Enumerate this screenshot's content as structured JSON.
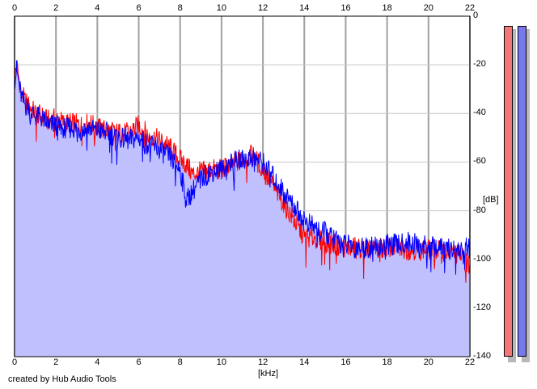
{
  "chart_data": {
    "type": "area",
    "title": "",
    "xlabel": "[kHz]",
    "ylabel": "[dB]",
    "xlim": [
      0,
      22
    ],
    "ylim": [
      -140,
      0
    ],
    "x_ticks": [
      "0",
      "2",
      "4",
      "6",
      "8",
      "10",
      "12",
      "14",
      "16",
      "18",
      "20",
      "22"
    ],
    "y_ticks": [
      "0",
      "-20",
      "-40",
      "-60",
      "-80",
      "-100",
      "-120",
      "-140"
    ],
    "grid": true,
    "x_scale": "linear",
    "series": [
      {
        "color": "#ff0000",
        "x": [
          0,
          0.1,
          0.2,
          0.3,
          0.4,
          0.6,
          0.8,
          1.0,
          1.3,
          1.6,
          2.0,
          2.4,
          2.8,
          3.2,
          3.6,
          4.0,
          4.5,
          5.0,
          5.5,
          6.0,
          6.5,
          7.0,
          7.5,
          8.0,
          8.3,
          8.6,
          9.0,
          9.5,
          10.0,
          10.5,
          11.0,
          11.5,
          12.0,
          12.5,
          13.0,
          13.5,
          14.0,
          14.5,
          15.0,
          15.5,
          16.0,
          16.5,
          17.0,
          17.5,
          18.0,
          18.5,
          19.0,
          19.5,
          20.0,
          20.5,
          21.0,
          21.5,
          22.0
        ],
        "y": [
          -24,
          -20,
          -25,
          -30,
          -33,
          -36,
          -38,
          -40,
          -41,
          -43,
          -42,
          -44,
          -44,
          -45,
          -44,
          -46,
          -47,
          -48,
          -48,
          -45,
          -49,
          -51,
          -54,
          -59,
          -61,
          -65,
          -64,
          -63,
          -63,
          -61,
          -59,
          -57,
          -63,
          -70,
          -77,
          -84,
          -91,
          -91,
          -93,
          -94,
          -95,
          -95,
          -96,
          -96,
          -95,
          -95,
          -96,
          -96,
          -96,
          -96,
          -97,
          -98,
          -103
        ]
      },
      {
        "color": "#0000ff",
        "x": [
          0,
          0.1,
          0.2,
          0.3,
          0.4,
          0.6,
          0.8,
          1.0,
          1.3,
          1.6,
          2.0,
          2.4,
          2.8,
          3.2,
          3.6,
          4.0,
          4.5,
          5.0,
          5.5,
          6.0,
          6.5,
          7.0,
          7.5,
          8.0,
          8.3,
          8.6,
          9.0,
          9.5,
          10.0,
          10.5,
          11.0,
          11.5,
          12.0,
          12.5,
          13.0,
          13.5,
          14.0,
          14.5,
          15.0,
          15.5,
          16.0,
          16.5,
          17.0,
          17.5,
          18.0,
          18.5,
          19.0,
          19.5,
          20.0,
          20.5,
          21.0,
          21.5,
          22.0
        ],
        "y": [
          -26,
          -22,
          -27,
          -32,
          -35,
          -37,
          -39,
          -41,
          -42,
          -44,
          -45,
          -46,
          -46,
          -47,
          -46,
          -47,
          -48,
          -50,
          -51,
          -50,
          -53,
          -55,
          -58,
          -63,
          -76,
          -72,
          -67,
          -64,
          -63,
          -60,
          -59,
          -58,
          -60,
          -66,
          -72,
          -78,
          -84,
          -87,
          -89,
          -92,
          -94,
          -95,
          -95,
          -95,
          -94,
          -94,
          -93,
          -94,
          -95,
          -95,
          -96,
          -96,
          -95
        ]
      }
    ]
  },
  "meters": {
    "left_color": "#f07878",
    "right_color": "#7878f0"
  },
  "footer": {
    "credit": "created by Hub Audio Tools"
  }
}
